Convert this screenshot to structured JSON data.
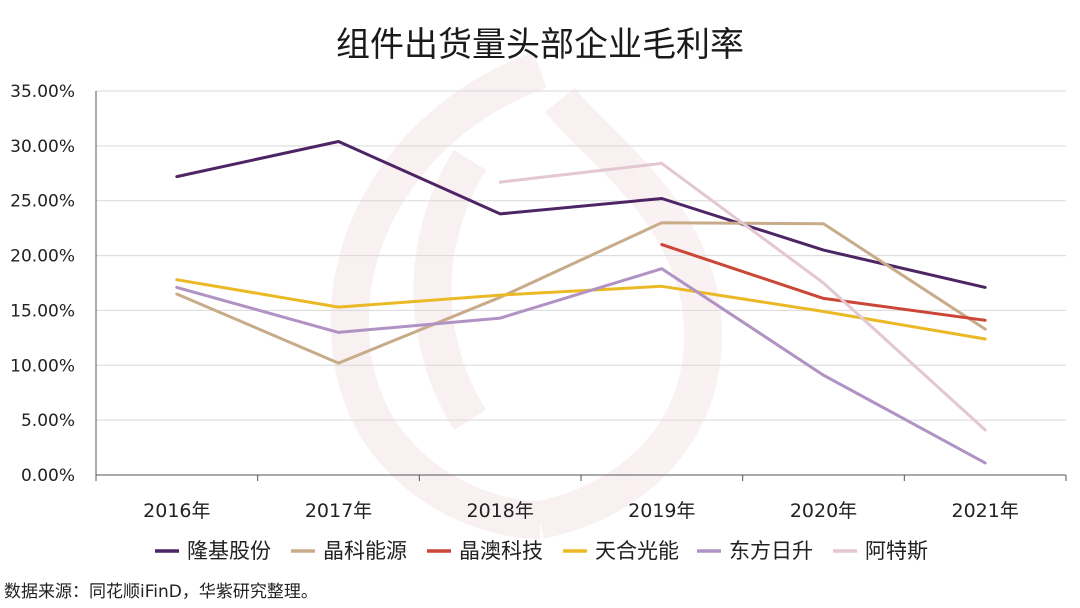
{
  "chart_data": {
    "type": "line",
    "title": "组件出货量头部企业毛利率",
    "categories": [
      "2016年",
      "2017年",
      "2018年",
      "2019年",
      "2020年",
      "2021年"
    ],
    "ylim": [
      0,
      35
    ],
    "yticks": [
      "0.00%",
      "5.00%",
      "10.00%",
      "15.00%",
      "20.00%",
      "25.00%",
      "30.00%",
      "35.00%"
    ],
    "grid": true,
    "legend_position": "bottom",
    "series": [
      {
        "name": "隆基股份",
        "color": "#4e2564",
        "values": [
          27.2,
          30.4,
          23.8,
          25.2,
          20.5,
          17.1
        ]
      },
      {
        "name": "晶科能源",
        "color": "#c8ac8a",
        "values": [
          16.5,
          10.2,
          16.2,
          23.0,
          22.9,
          13.3
        ]
      },
      {
        "name": "晶澳科技",
        "color": "#cc4637",
        "values": [
          null,
          null,
          null,
          21.0,
          16.1,
          14.1
        ]
      },
      {
        "name": "天合光能",
        "color": "#ebb925",
        "values": [
          17.8,
          15.3,
          16.4,
          17.2,
          14.9,
          12.4
        ]
      },
      {
        "name": "东方日升",
        "color": "#b092c4",
        "values": [
          17.1,
          13.0,
          14.3,
          18.8,
          9.1,
          1.1
        ]
      },
      {
        "name": "阿特斯",
        "color": "#e3c7d2",
        "values": [
          null,
          null,
          26.7,
          28.4,
          17.5,
          4.1
        ]
      }
    ]
  },
  "footer": {
    "source": "数据来源：同花顺iFinD，华紫研究整理。"
  }
}
